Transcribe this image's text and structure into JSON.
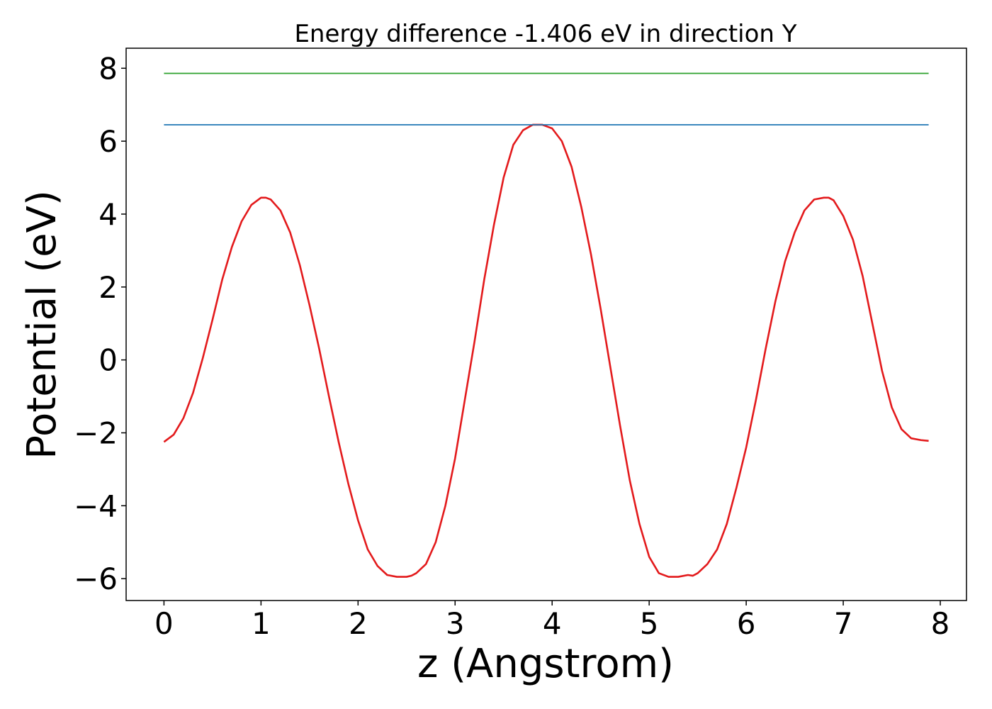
{
  "chart_data": {
    "type": "line",
    "title": "Energy difference -1.406 eV in direction Y",
    "xlabel": "z (Angstrom)",
    "ylabel": "Potential (eV)",
    "xlim": [
      -0.39,
      8.27
    ],
    "ylim": [
      -6.6,
      8.55
    ],
    "xticks": [
      0,
      1,
      2,
      3,
      4,
      5,
      6,
      7,
      8
    ],
    "xtick_labels": [
      "0",
      "1",
      "2",
      "3",
      "4",
      "5",
      "6",
      "7",
      "8"
    ],
    "yticks": [
      -6,
      -4,
      -2,
      0,
      2,
      4,
      6,
      8
    ],
    "ytick_labels": [
      "−6",
      "−4",
      "−2",
      "0",
      "2",
      "4",
      "6",
      "8"
    ],
    "grid": false,
    "legend": null,
    "series": [
      {
        "color": "#e31a1c",
        "x": [
          0.0,
          0.1,
          0.2,
          0.3,
          0.4,
          0.5,
          0.6,
          0.7,
          0.8,
          0.9,
          1.0,
          1.05,
          1.1,
          1.2,
          1.3,
          1.4,
          1.5,
          1.6,
          1.7,
          1.8,
          1.9,
          2.0,
          2.1,
          2.2,
          2.3,
          2.4,
          2.5,
          2.55,
          2.6,
          2.7,
          2.8,
          2.9,
          3.0,
          3.1,
          3.2,
          3.3,
          3.4,
          3.5,
          3.6,
          3.7,
          3.8,
          3.9,
          3.95,
          4.0,
          4.1,
          4.2,
          4.3,
          4.4,
          4.5,
          4.6,
          4.7,
          4.8,
          4.9,
          5.0,
          5.1,
          5.2,
          5.3,
          5.4,
          5.45,
          5.5,
          5.6,
          5.7,
          5.8,
          5.9,
          6.0,
          6.1,
          6.2,
          6.3,
          6.4,
          6.5,
          6.6,
          6.7,
          6.8,
          6.85,
          6.9,
          7.0,
          7.1,
          7.2,
          7.3,
          7.4,
          7.5,
          7.6,
          7.7,
          7.8,
          7.88
        ],
        "y": [
          -2.25,
          -2.05,
          -1.6,
          -0.9,
          0.05,
          1.1,
          2.2,
          3.1,
          3.8,
          4.25,
          4.45,
          4.45,
          4.4,
          4.1,
          3.5,
          2.6,
          1.5,
          0.3,
          -1.0,
          -2.25,
          -3.4,
          -4.4,
          -5.2,
          -5.65,
          -5.9,
          -5.95,
          -5.95,
          -5.92,
          -5.85,
          -5.6,
          -5.0,
          -4.0,
          -2.7,
          -1.1,
          0.5,
          2.2,
          3.7,
          5.0,
          5.9,
          6.3,
          6.45,
          6.45,
          6.4,
          6.35,
          6.0,
          5.3,
          4.2,
          2.9,
          1.4,
          -0.2,
          -1.8,
          -3.3,
          -4.5,
          -5.4,
          -5.85,
          -5.95,
          -5.95,
          -5.9,
          -5.92,
          -5.85,
          -5.6,
          -5.2,
          -4.5,
          -3.5,
          -2.4,
          -1.1,
          0.3,
          1.6,
          2.7,
          3.5,
          4.1,
          4.4,
          4.45,
          4.45,
          4.38,
          3.95,
          3.3,
          2.3,
          1.0,
          -0.3,
          -1.3,
          -1.9,
          -2.15,
          -2.2,
          -2.22
        ]
      },
      {
        "color": "#1f77b4",
        "x": [
          0.0,
          7.88
        ],
        "y": [
          6.45,
          6.45
        ]
      },
      {
        "color": "#2ca02c",
        "x": [
          0.0,
          7.88
        ],
        "y": [
          7.86,
          7.86
        ]
      }
    ]
  }
}
